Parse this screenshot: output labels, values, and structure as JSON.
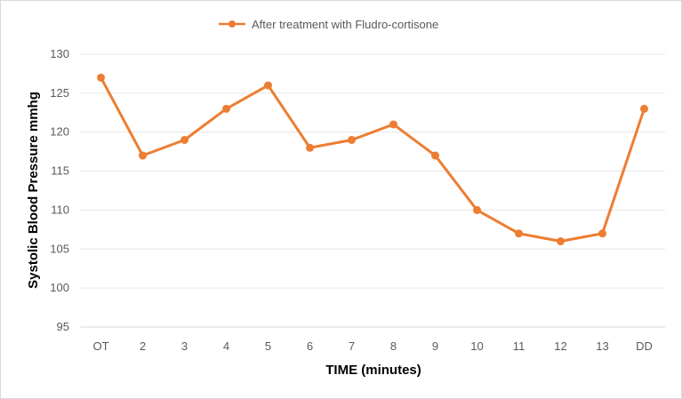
{
  "chart_data": {
    "type": "line",
    "categories": [
      "OT",
      "2",
      "3",
      "4",
      "5",
      "6",
      "7",
      "8",
      "9",
      "10",
      "11",
      "12",
      "13",
      "DD"
    ],
    "series": [
      {
        "name": "After treatment with Fludro-cortisone",
        "values": [
          127,
          117,
          119,
          123,
          126,
          118,
          119,
          121,
          117,
          110,
          107,
          106,
          107,
          123
        ],
        "color": "#ed7d31"
      }
    ],
    "title": "",
    "xlabel": "TIME (minutes)",
    "ylabel": "Systolic Blood Pressure mmhg",
    "ylim": [
      95,
      130
    ],
    "yticks": [
      95,
      100,
      105,
      110,
      115,
      120,
      125,
      130
    ],
    "grid": true,
    "legend_position": "top"
  }
}
